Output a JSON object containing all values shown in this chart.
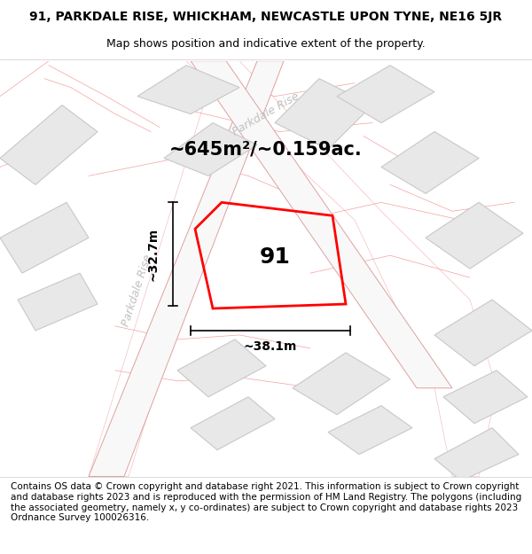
{
  "title_line1": "91, PARKDALE RISE, WHICKHAM, NEWCASTLE UPON TYNE, NE16 5JR",
  "title_line2": "Map shows position and indicative extent of the property.",
  "footer_text": "Contains OS data © Crown copyright and database right 2021. This information is subject to Crown copyright and database rights 2023 and is reproduced with the permission of HM Land Registry. The polygons (including the associated geometry, namely x, y co-ordinates) are subject to Crown copyright and database rights 2023 Ordnance Survey 100026316.",
  "area_label": "~645m²/~0.159ac.",
  "property_number": "91",
  "width_label": "~38.1m",
  "height_label": "~32.7m",
  "road_label_1": "Parkdale Rise",
  "road_label_2": "Parkdale Rise",
  "bg_color": "#f5f5f5",
  "map_bg": "#f0f0f0",
  "block_color": "#e8e8e8",
  "block_border": "#c0c0c0",
  "road_color": "#f5c0c0",
  "road_fill": "#ffffff",
  "property_color": "#ff0000",
  "property_fill": "none",
  "dim_color": "#000000",
  "title_fontsize": 10,
  "subtitle_fontsize": 9,
  "footer_fontsize": 7.5,
  "area_fontsize": 15,
  "number_fontsize": 18,
  "dim_label_fontsize": 10,
  "road_label_fontsize": 9
}
